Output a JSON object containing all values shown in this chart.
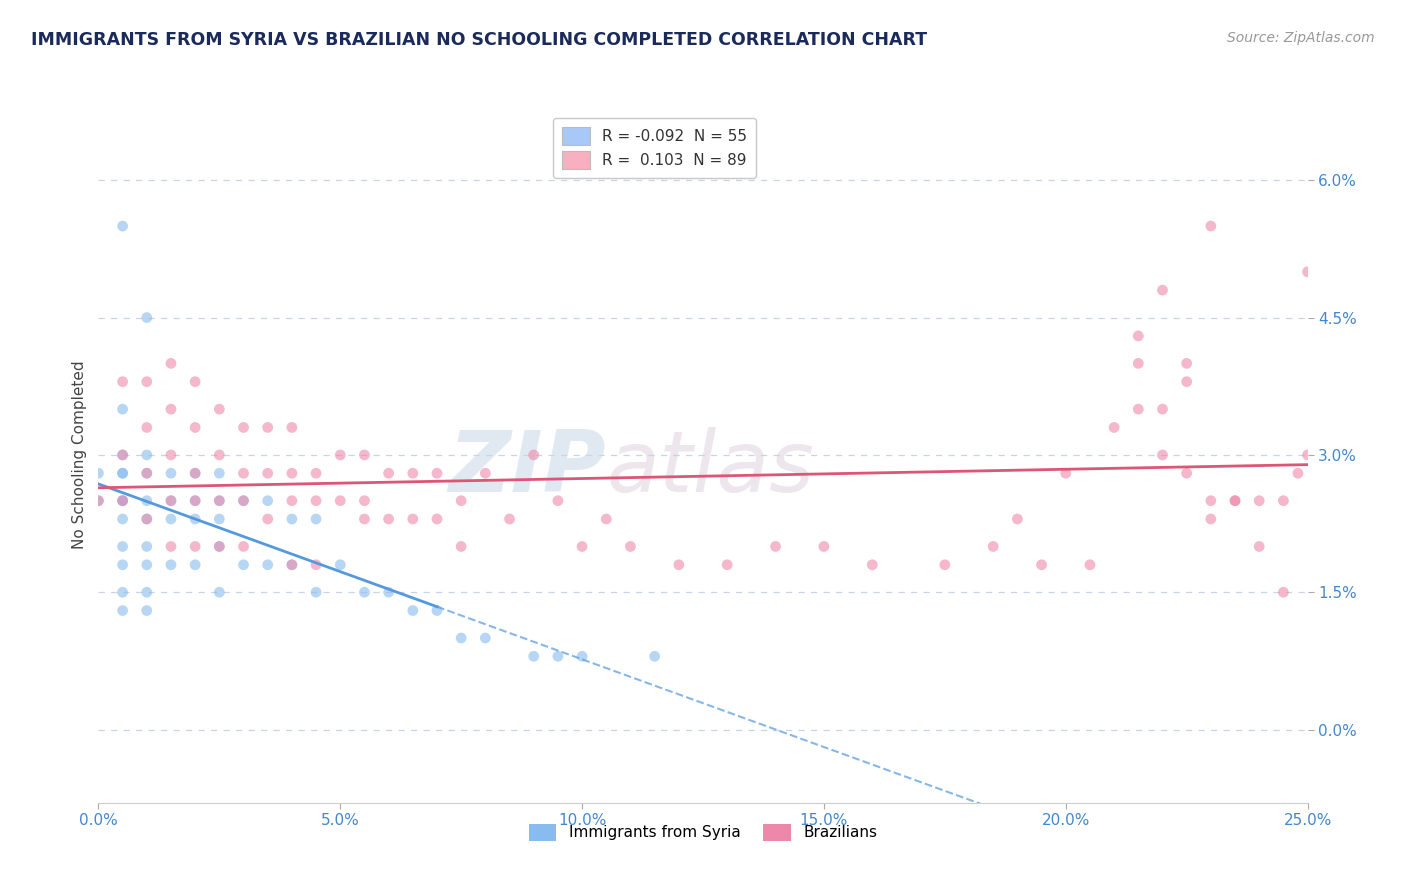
{
  "title": "IMMIGRANTS FROM SYRIA VS BRAZILIAN NO SCHOOLING COMPLETED CORRELATION CHART",
  "source_text": "Source: ZipAtlas.com",
  "ylabel": "No Schooling Completed",
  "watermark_zip": "ZIP",
  "watermark_atlas": "atlas",
  "legend_entries": [
    {
      "label_r": "R = ",
      "r_val": "-0.092",
      "label_n": "  N = ",
      "n_val": "55",
      "color": "#a8c8f8"
    },
    {
      "label_r": "R =  ",
      "r_val": "0.103",
      "label_n": "  N = ",
      "n_val": "89",
      "color": "#f8b0c0"
    }
  ],
  "xlim": [
    0.0,
    0.25
  ],
  "ylim": [
    -0.008,
    0.068
  ],
  "xticks": [
    0.0,
    0.05,
    0.1,
    0.15,
    0.2,
    0.25
  ],
  "xtick_labels": [
    "0.0%",
    "5.0%",
    "10.0%",
    "15.0%",
    "20.0%",
    "25.0%"
  ],
  "yticks": [
    0.0,
    0.015,
    0.03,
    0.045,
    0.06
  ],
  "ytick_labels": [
    "0.0%",
    "1.5%",
    "3.0%",
    "4.5%",
    "6.0%"
  ],
  "background_color": "#ffffff",
  "grid_color": "#c8d4e8",
  "title_color": "#1a2a5a",
  "axis_label_color": "#444444",
  "tick_color": "#4488cc",
  "series1_color": "#88bbee",
  "series2_color": "#ee88aa",
  "trend1_color": "#5599dd",
  "trend2_color": "#dd5577",
  "series1_x": [
    0.005,
    0.01,
    0.005,
    0.005,
    0.0,
    0.0,
    0.005,
    0.005,
    0.005,
    0.005,
    0.005,
    0.005,
    0.005,
    0.005,
    0.005,
    0.01,
    0.01,
    0.01,
    0.01,
    0.01,
    0.01,
    0.01,
    0.01,
    0.015,
    0.015,
    0.015,
    0.015,
    0.02,
    0.02,
    0.02,
    0.02,
    0.025,
    0.025,
    0.025,
    0.025,
    0.025,
    0.03,
    0.03,
    0.035,
    0.035,
    0.04,
    0.04,
    0.045,
    0.045,
    0.05,
    0.055,
    0.06,
    0.065,
    0.07,
    0.075,
    0.08,
    0.09,
    0.095,
    0.1,
    0.115
  ],
  "series1_y": [
    0.055,
    0.045,
    0.035,
    0.03,
    0.028,
    0.025,
    0.028,
    0.025,
    0.023,
    0.02,
    0.018,
    0.015,
    0.013,
    0.028,
    0.025,
    0.03,
    0.028,
    0.025,
    0.023,
    0.02,
    0.018,
    0.015,
    0.013,
    0.028,
    0.025,
    0.023,
    0.018,
    0.028,
    0.025,
    0.023,
    0.018,
    0.028,
    0.025,
    0.023,
    0.02,
    0.015,
    0.025,
    0.018,
    0.025,
    0.018,
    0.023,
    0.018,
    0.023,
    0.015,
    0.018,
    0.015,
    0.015,
    0.013,
    0.013,
    0.01,
    0.01,
    0.008,
    0.008,
    0.008,
    0.008
  ],
  "series2_x": [
    0.0,
    0.005,
    0.005,
    0.005,
    0.01,
    0.01,
    0.01,
    0.01,
    0.015,
    0.015,
    0.015,
    0.015,
    0.015,
    0.02,
    0.02,
    0.02,
    0.02,
    0.02,
    0.025,
    0.025,
    0.025,
    0.025,
    0.03,
    0.03,
    0.03,
    0.03,
    0.035,
    0.035,
    0.035,
    0.04,
    0.04,
    0.04,
    0.04,
    0.045,
    0.045,
    0.045,
    0.05,
    0.05,
    0.055,
    0.055,
    0.055,
    0.06,
    0.06,
    0.065,
    0.065,
    0.07,
    0.07,
    0.075,
    0.075,
    0.08,
    0.085,
    0.09,
    0.095,
    0.1,
    0.105,
    0.11,
    0.12,
    0.13,
    0.14,
    0.15,
    0.16,
    0.175,
    0.185,
    0.19,
    0.195,
    0.2,
    0.205,
    0.21,
    0.215,
    0.22,
    0.225,
    0.23,
    0.235,
    0.24,
    0.245,
    0.248,
    0.25,
    0.22,
    0.225,
    0.215,
    0.23,
    0.235,
    0.24,
    0.245,
    0.25,
    0.215,
    0.22,
    0.225,
    0.23
  ],
  "series2_y": [
    0.025,
    0.038,
    0.03,
    0.025,
    0.038,
    0.033,
    0.028,
    0.023,
    0.04,
    0.035,
    0.03,
    0.025,
    0.02,
    0.038,
    0.033,
    0.028,
    0.025,
    0.02,
    0.035,
    0.03,
    0.025,
    0.02,
    0.033,
    0.028,
    0.025,
    0.02,
    0.033,
    0.028,
    0.023,
    0.033,
    0.028,
    0.025,
    0.018,
    0.028,
    0.025,
    0.018,
    0.03,
    0.025,
    0.03,
    0.025,
    0.023,
    0.028,
    0.023,
    0.028,
    0.023,
    0.028,
    0.023,
    0.025,
    0.02,
    0.028,
    0.023,
    0.03,
    0.025,
    0.02,
    0.023,
    0.02,
    0.018,
    0.018,
    0.02,
    0.02,
    0.018,
    0.018,
    0.02,
    0.023,
    0.018,
    0.028,
    0.018,
    0.033,
    0.035,
    0.03,
    0.04,
    0.025,
    0.025,
    0.025,
    0.025,
    0.028,
    0.05,
    0.048,
    0.038,
    0.04,
    0.055,
    0.025,
    0.02,
    0.015,
    0.03,
    0.043,
    0.035,
    0.028,
    0.023
  ]
}
